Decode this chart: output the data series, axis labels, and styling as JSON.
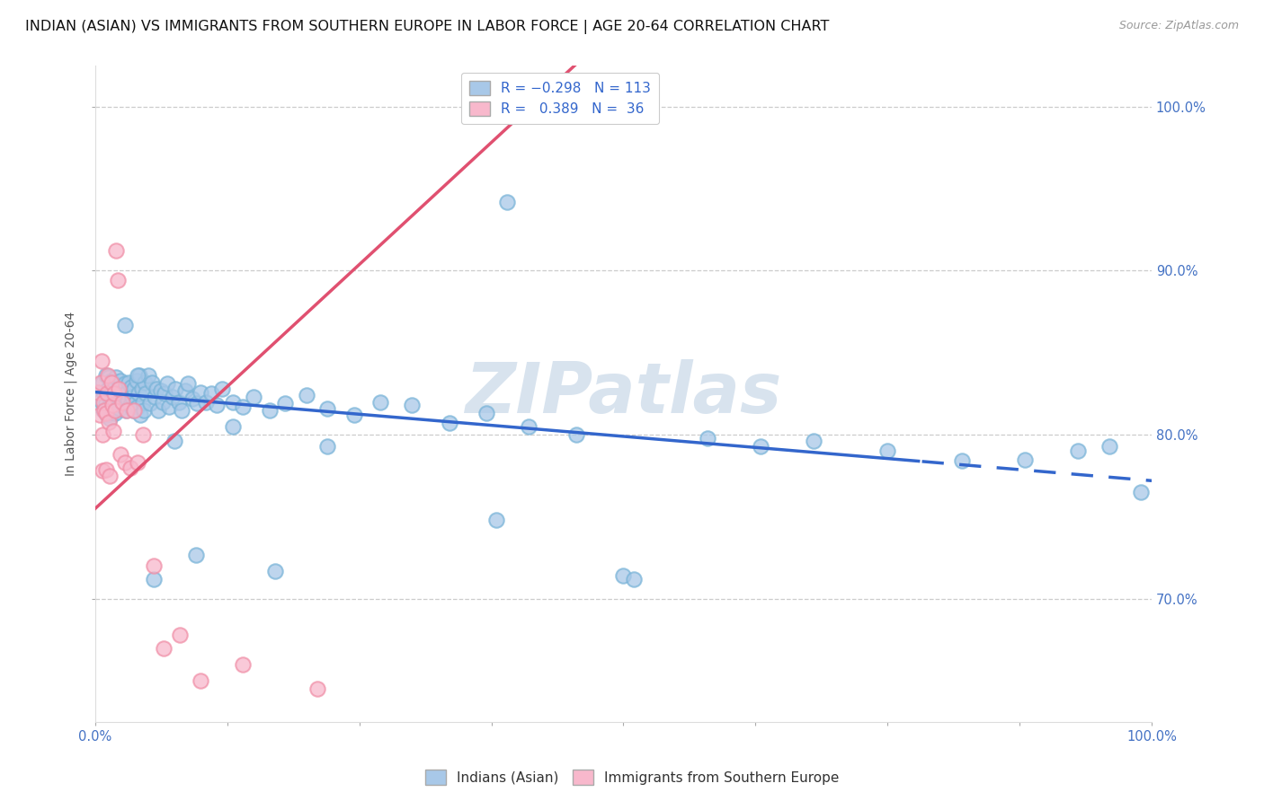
{
  "title": "INDIAN (ASIAN) VS IMMIGRANTS FROM SOUTHERN EUROPE IN LABOR FORCE | AGE 20-64 CORRELATION CHART",
  "source": "Source: ZipAtlas.com",
  "ylabel": "In Labor Force | Age 20-64",
  "blue_color": "#7ab4d8",
  "pink_color": "#f090a8",
  "blue_line_color": "#3366cc",
  "pink_line_color": "#e05070",
  "blue_fill_color": "#a8c8e8",
  "pink_fill_color": "#f8b8cc",
  "watermark_color": "#c8d8e8",
  "R_blue": -0.298,
  "N_blue": 113,
  "R_pink": 0.389,
  "N_pink": 36,
  "x_min": 0.0,
  "x_max": 1.0,
  "y_min": 0.625,
  "y_max": 1.025,
  "y_ticks": [
    0.7,
    0.8,
    0.9,
    1.0
  ],
  "y_tick_labels": [
    "70.0%",
    "80.0%",
    "90.0%",
    "100.0%"
  ],
  "x_ticks": [
    0.0,
    1.0
  ],
  "x_tick_labels": [
    "0.0%",
    "100.0%"
  ],
  "grid_color": "#cccccc",
  "background_color": "#ffffff",
  "title_fontsize": 11.5,
  "axis_label_fontsize": 10,
  "tick_fontsize": 10.5,
  "source_fontsize": 9,
  "legend_fontsize": 11,
  "blue_scatter_x": [
    0.005,
    0.007,
    0.008,
    0.009,
    0.01,
    0.01,
    0.011,
    0.012,
    0.013,
    0.013,
    0.014,
    0.014,
    0.015,
    0.015,
    0.015,
    0.016,
    0.016,
    0.017,
    0.017,
    0.018,
    0.018,
    0.019,
    0.019,
    0.02,
    0.02,
    0.021,
    0.022,
    0.022,
    0.023,
    0.024,
    0.025,
    0.025,
    0.026,
    0.027,
    0.028,
    0.029,
    0.03,
    0.031,
    0.032,
    0.033,
    0.034,
    0.035,
    0.036,
    0.037,
    0.038,
    0.039,
    0.04,
    0.041,
    0.042,
    0.043,
    0.044,
    0.045,
    0.046,
    0.047,
    0.048,
    0.05,
    0.052,
    0.054,
    0.056,
    0.058,
    0.06,
    0.062,
    0.064,
    0.066,
    0.068,
    0.07,
    0.073,
    0.076,
    0.079,
    0.082,
    0.085,
    0.088,
    0.092,
    0.096,
    0.1,
    0.105,
    0.11,
    0.115,
    0.12,
    0.13,
    0.14,
    0.15,
    0.165,
    0.18,
    0.2,
    0.22,
    0.245,
    0.27,
    0.3,
    0.335,
    0.37,
    0.41,
    0.455,
    0.39,
    0.5,
    0.51,
    0.58,
    0.63,
    0.68,
    0.75,
    0.82,
    0.88,
    0.93,
    0.96,
    0.99,
    0.38,
    0.17,
    0.095,
    0.13,
    0.22,
    0.055,
    0.075,
    0.028,
    0.04
  ],
  "blue_scatter_y": [
    0.821,
    0.832,
    0.815,
    0.825,
    0.82,
    0.836,
    0.812,
    0.828,
    0.817,
    0.835,
    0.81,
    0.826,
    0.822,
    0.833,
    0.819,
    0.827,
    0.814,
    0.831,
    0.823,
    0.818,
    0.829,
    0.813,
    0.825,
    0.82,
    0.835,
    0.817,
    0.828,
    0.822,
    0.816,
    0.833,
    0.82,
    0.827,
    0.819,
    0.824,
    0.831,
    0.815,
    0.826,
    0.821,
    0.832,
    0.818,
    0.829,
    0.823,
    0.815,
    0.828,
    0.82,
    0.833,
    0.817,
    0.825,
    0.836,
    0.812,
    0.828,
    0.82,
    0.815,
    0.832,
    0.825,
    0.836,
    0.819,
    0.832,
    0.823,
    0.828,
    0.815,
    0.827,
    0.82,
    0.825,
    0.831,
    0.817,
    0.823,
    0.828,
    0.82,
    0.815,
    0.827,
    0.831,
    0.822,
    0.819,
    0.826,
    0.82,
    0.825,
    0.818,
    0.828,
    0.82,
    0.817,
    0.823,
    0.815,
    0.819,
    0.824,
    0.816,
    0.812,
    0.82,
    0.818,
    0.807,
    0.813,
    0.805,
    0.8,
    0.942,
    0.714,
    0.712,
    0.798,
    0.793,
    0.796,
    0.79,
    0.784,
    0.785,
    0.79,
    0.793,
    0.765,
    0.748,
    0.717,
    0.727,
    0.805,
    0.793,
    0.712,
    0.796,
    0.867,
    0.836
  ],
  "pink_scatter_x": [
    0.003,
    0.004,
    0.005,
    0.006,
    0.007,
    0.007,
    0.008,
    0.009,
    0.01,
    0.01,
    0.011,
    0.012,
    0.013,
    0.014,
    0.015,
    0.016,
    0.017,
    0.018,
    0.019,
    0.02,
    0.021,
    0.022,
    0.024,
    0.026,
    0.028,
    0.03,
    0.033,
    0.037,
    0.04,
    0.045,
    0.055,
    0.065,
    0.08,
    0.1,
    0.14,
    0.21
  ],
  "pink_scatter_y": [
    0.826,
    0.812,
    0.832,
    0.845,
    0.778,
    0.8,
    0.82,
    0.815,
    0.779,
    0.813,
    0.825,
    0.836,
    0.808,
    0.775,
    0.832,
    0.818,
    0.802,
    0.825,
    0.815,
    0.912,
    0.894,
    0.828,
    0.788,
    0.82,
    0.783,
    0.815,
    0.78,
    0.815,
    0.783,
    0.8,
    0.72,
    0.67,
    0.678,
    0.65,
    0.66,
    0.645
  ]
}
